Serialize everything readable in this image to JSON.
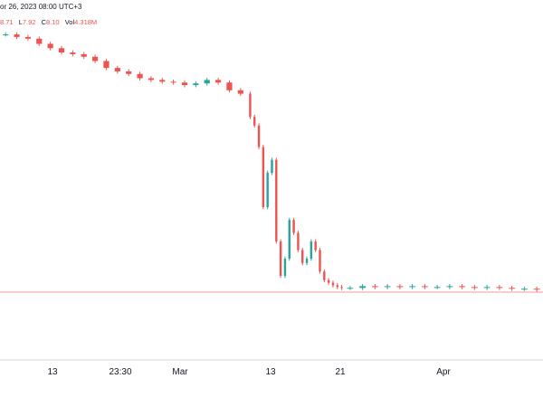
{
  "header": {
    "date_text": "or 26, 2023 08:00 UTC+3",
    "ohlc": [
      {
        "key": "",
        "value": "8.71"
      },
      {
        "key": "L",
        "value": "7.92"
      },
      {
        "key": "C",
        "value": "8.10"
      },
      {
        "key": "Vol",
        "value": "4.318M"
      }
    ]
  },
  "colors": {
    "up": "#26a69a",
    "down": "#ef5350",
    "price_line": "#ef9a9a",
    "axis_text": "#131722"
  },
  "chart_data": {
    "type": "candlestick",
    "title": "",
    "xlabel": "",
    "ylabel": "",
    "x_tick_labels": [
      "13",
      "23:30",
      "Mar",
      "13",
      "21",
      "Apr"
    ],
    "grid": false,
    "legend": "none",
    "last_price": 8.1,
    "ylim": [
      0,
      40
    ],
    "series": [
      {
        "segment": "early-decline",
        "values": [
          38.1,
          37.8,
          37.6,
          37.0,
          36.5,
          36.0,
          35.8,
          35.5,
          35.0,
          34.2,
          33.8,
          33.5,
          33.0,
          32.8,
          32.6,
          32.5,
          32.2,
          32.4,
          32.8,
          32.5,
          31.6,
          31.2
        ]
      },
      {
        "segment": "crash",
        "values": [
          28.5,
          27.5,
          25.0,
          18.0,
          22.0,
          23.5,
          14.0,
          10.0,
          12.0,
          16.5,
          15.0,
          13.0,
          11.5,
          12.0,
          14.0,
          13.0,
          10.5,
          9.5,
          9.2,
          8.9,
          8.7,
          8.6
        ]
      },
      {
        "segment": "flat",
        "values": [
          8.6,
          8.8,
          8.7,
          8.8,
          8.7,
          8.8,
          8.7,
          8.7,
          8.8,
          8.7,
          8.6,
          8.7,
          8.6,
          8.5,
          8.5,
          8.4
        ]
      }
    ]
  }
}
